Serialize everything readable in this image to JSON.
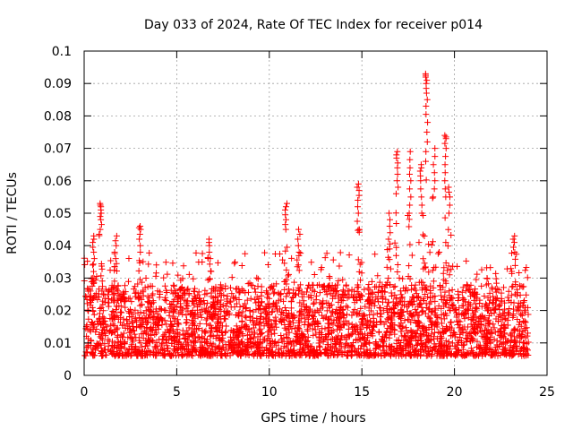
{
  "chart_data": {
    "type": "scatter",
    "title": "Day 033 of 2024, Rate Of TEC Index for receiver p014",
    "xlabel": "GPS time / hours",
    "ylabel": "ROTI / TECUs",
    "xlim": [
      0,
      25
    ],
    "ylim": [
      0,
      0.1
    ],
    "grid": true,
    "marker": "+",
    "series_color": "#ff0000",
    "x_ticks": [
      {
        "value": 0,
        "label": "0"
      },
      {
        "value": 5,
        "label": "5"
      },
      {
        "value": 10,
        "label": "10"
      },
      {
        "value": 15,
        "label": "15"
      },
      {
        "value": 20,
        "label": "20"
      },
      {
        "value": 25,
        "label": "25"
      }
    ],
    "y_ticks": [
      {
        "value": 0,
        "label": "0"
      },
      {
        "value": 0.01,
        "label": "0.01"
      },
      {
        "value": 0.02,
        "label": "0.02"
      },
      {
        "value": 0.03,
        "label": "0.03"
      },
      {
        "value": 0.04,
        "label": "0.04"
      },
      {
        "value": 0.05,
        "label": "0.05"
      },
      {
        "value": 0.06,
        "label": "0.06"
      },
      {
        "value": 0.07,
        "label": "0.07"
      },
      {
        "value": 0.08,
        "label": "0.08"
      },
      {
        "value": 0.09,
        "label": "0.09"
      },
      {
        "value": 0.1,
        "label": "0.1"
      }
    ],
    "bulk": {
      "x_range": [
        0,
        24
      ],
      "y_baseline": 0.006,
      "y_typical_max": 0.028,
      "y_max": 0.038,
      "point_count": 3200
    },
    "spikes": [
      {
        "x": 0.5,
        "values": [
          0.03,
          0.034,
          0.038,
          0.041,
          0.043
        ]
      },
      {
        "x": 0.9,
        "values": [
          0.045,
          0.048,
          0.05,
          0.052,
          0.053
        ]
      },
      {
        "x": 1.7,
        "values": [
          0.036,
          0.04,
          0.043
        ]
      },
      {
        "x": 3.0,
        "values": [
          0.038,
          0.042,
          0.045,
          0.046
        ]
      },
      {
        "x": 6.8,
        "values": [
          0.036,
          0.04,
          0.042
        ]
      },
      {
        "x": 10.9,
        "values": [
          0.045,
          0.048,
          0.051,
          0.053
        ]
      },
      {
        "x": 11.6,
        "values": [
          0.038,
          0.042,
          0.045
        ]
      },
      {
        "x": 14.8,
        "values": [
          0.045,
          0.05,
          0.054,
          0.057,
          0.059
        ]
      },
      {
        "x": 16.5,
        "values": [
          0.039,
          0.042,
          0.046,
          0.05
        ]
      },
      {
        "x": 16.9,
        "values": [
          0.056,
          0.06,
          0.064,
          0.067,
          0.069
        ]
      },
      {
        "x": 17.6,
        "values": [
          0.05,
          0.055,
          0.06,
          0.064,
          0.069
        ]
      },
      {
        "x": 18.2,
        "values": [
          0.05,
          0.055,
          0.06,
          0.063,
          0.065
        ]
      },
      {
        "x": 18.5,
        "values": [
          0.066,
          0.072,
          0.078,
          0.083,
          0.087,
          0.09,
          0.092,
          0.093
        ]
      },
      {
        "x": 18.9,
        "values": [
          0.055,
          0.06,
          0.065,
          0.07
        ]
      },
      {
        "x": 19.5,
        "values": [
          0.055,
          0.06,
          0.065,
          0.07,
          0.073,
          0.074
        ]
      },
      {
        "x": 19.7,
        "values": [
          0.05,
          0.055,
          0.058
        ]
      },
      {
        "x": 23.2,
        "values": [
          0.038,
          0.041,
          0.043
        ]
      }
    ]
  }
}
